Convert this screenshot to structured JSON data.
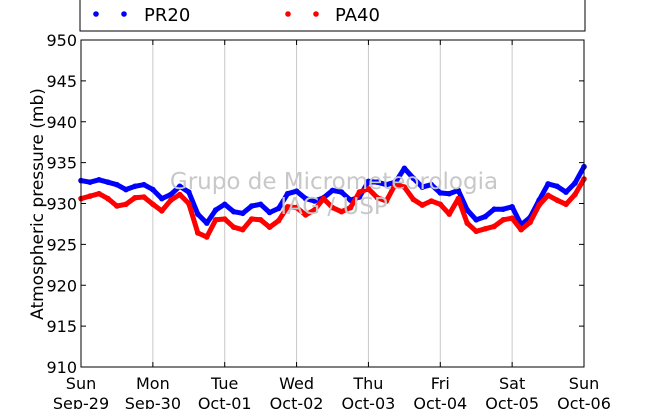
{
  "chart_data": {
    "type": "line",
    "title": "",
    "xlabel": "",
    "ylabel": "Atmospheric pressure (mb)",
    "ylim": [
      910,
      950
    ],
    "xlim": [
      0,
      7
    ],
    "yticks": [
      910,
      915,
      920,
      925,
      930,
      935,
      940,
      945,
      950
    ],
    "xticks": [
      {
        "x": 0,
        "day": "Sun",
        "date": "Sep-29"
      },
      {
        "x": 1,
        "day": "Mon",
        "date": "Sep-30"
      },
      {
        "x": 2,
        "day": "Tue",
        "date": "Oct-01"
      },
      {
        "x": 3,
        "day": "Wed",
        "date": "Oct-02"
      },
      {
        "x": 4,
        "day": "Thu",
        "date": "Oct-03"
      },
      {
        "x": 5,
        "day": "Fri",
        "date": "Oct-04"
      },
      {
        "x": 6,
        "day": "Sat",
        "date": "Oct-05"
      },
      {
        "x": 7,
        "day": "Sun",
        "date": "Oct-06"
      }
    ],
    "grid": "vertical",
    "legend_position": "top",
    "series": [
      {
        "name": "PR20",
        "color": "#0000ff",
        "x": [
          0,
          0.125,
          0.25,
          0.375,
          0.5,
          0.625,
          0.75,
          0.875,
          1,
          1.125,
          1.25,
          1.375,
          1.5,
          1.625,
          1.75,
          1.875,
          2,
          2.125,
          2.25,
          2.375,
          2.5,
          2.625,
          2.75,
          2.875,
          3,
          3.125,
          3.25,
          3.375,
          3.5,
          3.625,
          3.75,
          3.875,
          4,
          4.125,
          4.25,
          4.375,
          4.5,
          4.625,
          4.75,
          4.875,
          5,
          5.125,
          5.25,
          5.375,
          5.5,
          5.625,
          5.75,
          5.875,
          6,
          6.125,
          6.25,
          6.375,
          6.5,
          6.625,
          6.75,
          6.875,
          7
        ],
        "y": [
          932.8,
          932.6,
          932.9,
          932.6,
          932.3,
          931.7,
          932.1,
          932.3,
          931.7,
          930.6,
          931.1,
          932.1,
          931.4,
          928.7,
          927.6,
          929.2,
          929.9,
          929.0,
          928.8,
          929.7,
          929.9,
          928.9,
          929.4,
          931.2,
          931.5,
          930.6,
          930.3,
          930.7,
          931.6,
          931.4,
          930.4,
          930.8,
          932.7,
          932.6,
          932.3,
          932.6,
          934.3,
          933.1,
          932.0,
          932.3,
          931.3,
          931.2,
          931.6,
          929.2,
          928.0,
          928.4,
          929.3,
          929.3,
          929.6,
          927.4,
          928.3,
          930.4,
          932.4,
          932.1,
          931.4,
          932.5,
          934.5
        ]
      },
      {
        "name": "PA40",
        "color": "#ff0000",
        "x": [
          0,
          0.125,
          0.25,
          0.375,
          0.5,
          0.625,
          0.75,
          0.875,
          1,
          1.125,
          1.25,
          1.375,
          1.5,
          1.625,
          1.75,
          1.875,
          2,
          2.125,
          2.25,
          2.375,
          2.5,
          2.625,
          2.75,
          2.875,
          3,
          3.125,
          3.25,
          3.375,
          3.5,
          3.625,
          3.75,
          3.875,
          4,
          4.125,
          4.25,
          4.375,
          4.5,
          4.625,
          4.75,
          4.875,
          5,
          5.125,
          5.25,
          5.375,
          5.5,
          5.625,
          5.75,
          5.875,
          6,
          6.125,
          6.25,
          6.375,
          6.5,
          6.625,
          6.75,
          6.875,
          7
        ],
        "y": [
          930.6,
          930.9,
          931.2,
          930.6,
          929.7,
          929.9,
          930.7,
          930.8,
          929.9,
          929.1,
          930.4,
          931.1,
          930.0,
          926.4,
          925.9,
          928.0,
          928.1,
          927.1,
          926.8,
          928.1,
          928.0,
          927.1,
          927.9,
          929.6,
          929.5,
          928.6,
          929.2,
          930.6,
          929.5,
          929.0,
          929.5,
          931.4,
          931.8,
          930.7,
          930.3,
          932.4,
          932.0,
          930.5,
          929.8,
          930.3,
          929.9,
          928.7,
          930.6,
          927.6,
          926.6,
          926.9,
          927.2,
          928.0,
          928.2,
          926.8,
          927.7,
          929.8,
          931.0,
          930.4,
          929.9,
          931.1,
          933.0
        ]
      }
    ],
    "watermark": {
      "line1": "Grupo de Micrometeorologia",
      "line2": "IAG / USP"
    }
  }
}
